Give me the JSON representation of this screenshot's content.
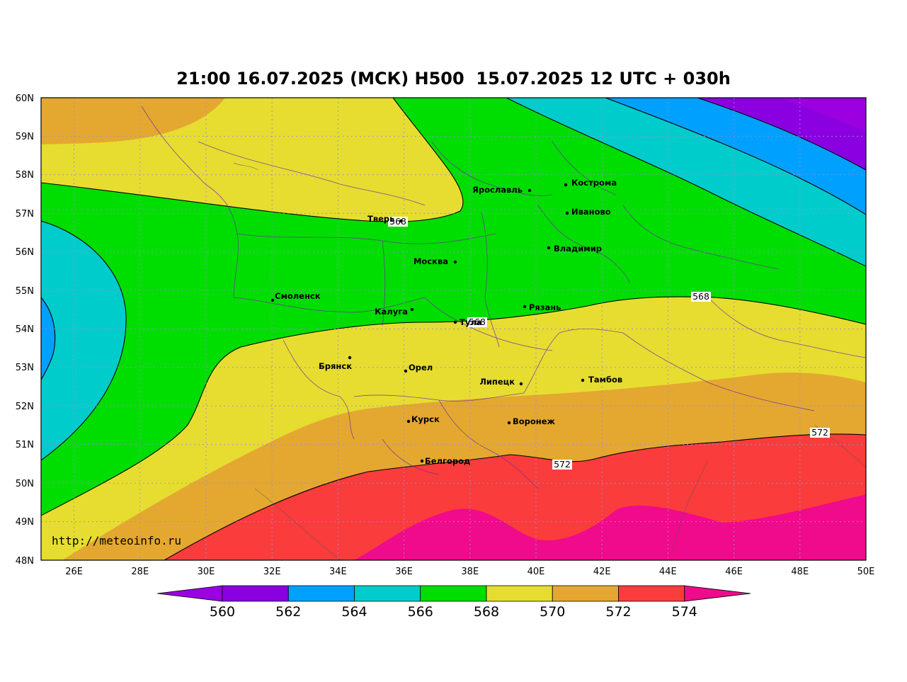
{
  "title": "21:00 16.07.2025 (МСК) H500  15.07.2025 12 UTC + 030h",
  "credit": "http://meteoinfo.ru",
  "lat_ticks": [
    "60N",
    "59N",
    "58N",
    "57N",
    "56N",
    "55N",
    "54N",
    "53N",
    "52N",
    "51N",
    "50N",
    "49N",
    "48N"
  ],
  "lon_ticks": [
    "26E",
    "28E",
    "30E",
    "32E",
    "34E",
    "36E",
    "38E",
    "40E",
    "42E",
    "44E",
    "46E",
    "48E",
    "50E"
  ],
  "cities": [
    {
      "name": "Кострома"
    },
    {
      "name": "Ярославль"
    },
    {
      "name": "Иваново"
    },
    {
      "name": "Тверь"
    },
    {
      "name": "Владимир"
    },
    {
      "name": "Москва"
    },
    {
      "name": "Смоленск"
    },
    {
      "name": "Калуга"
    },
    {
      "name": "Рязань"
    },
    {
      "name": "Тула"
    },
    {
      "name": "Брянск"
    },
    {
      "name": "Орел"
    },
    {
      "name": "Липецк"
    },
    {
      "name": "Тамбов"
    },
    {
      "name": "Курск"
    },
    {
      "name": "Воронеж"
    },
    {
      "name": "Белгород"
    }
  ],
  "contour_labels": [
    "568",
    "568",
    "568",
    "572",
    "572"
  ],
  "colorbar": {
    "labels": [
      "560",
      "562",
      "564",
      "566",
      "568",
      "570",
      "572",
      "574"
    ],
    "colors": [
      "#9a00e0",
      "#8a00e0",
      "#00a0ff",
      "#00cccc",
      "#00dd00",
      "#e6dd30",
      "#e4a830",
      "#fa3c3c",
      "#f00a8c"
    ]
  },
  "field_colors": {
    "purple": "#8a00e0",
    "blue": "#00a0ff",
    "cyan": "#00cccc",
    "green": "#00dd00",
    "yellow": "#e6dd30",
    "orange": "#e4a830",
    "red": "#fa3c3c",
    "magenta": "#f00a8c"
  }
}
